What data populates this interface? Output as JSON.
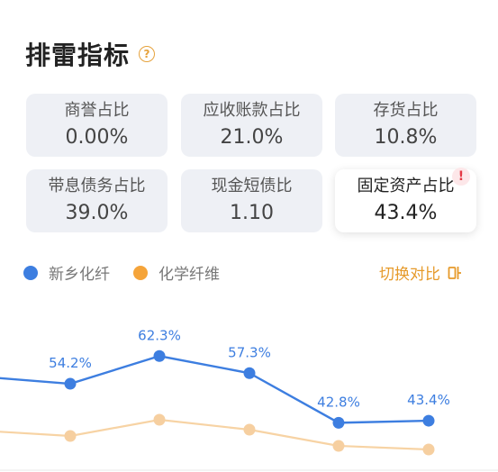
{
  "header": {
    "title": "排雷指标",
    "help_icon": "help-circle-icon",
    "help_glyph": "?"
  },
  "cards": [
    {
      "label": "商誉占比",
      "value": "0.00%"
    },
    {
      "label": "应收账款占比",
      "value": "21.0%"
    },
    {
      "label": "存货占比",
      "value": "10.8%"
    },
    {
      "label": "带息债务占比",
      "value": "39.0%"
    },
    {
      "label": "现金短债比",
      "value": "1.10"
    },
    {
      "label": "固定资产占比",
      "value": "43.4%",
      "active": true,
      "alert_glyph": "!"
    }
  ],
  "legend": {
    "series1": "新乡化纤",
    "series2": "化学纤维",
    "switch_label": "切换对比"
  },
  "colors": {
    "series1": "#3d7ee0",
    "series2": "#f5a43a",
    "series2_line": "#f7d3a4",
    "series2_point": "#f6cfa0",
    "accent": "#e69a2a",
    "alert": "#e53845"
  },
  "chart_data": {
    "type": "line",
    "series": [
      {
        "name": "新乡化纤",
        "values": [
          null,
          54.2,
          62.3,
          57.3,
          42.8,
          43.4
        ],
        "labels": [
          "",
          "54.2%",
          "62.3%",
          "57.3%",
          "42.8%",
          "43.4%"
        ]
      },
      {
        "name": "化学纤维",
        "values": [
          null,
          null,
          null,
          null,
          null,
          null
        ]
      }
    ]
  }
}
